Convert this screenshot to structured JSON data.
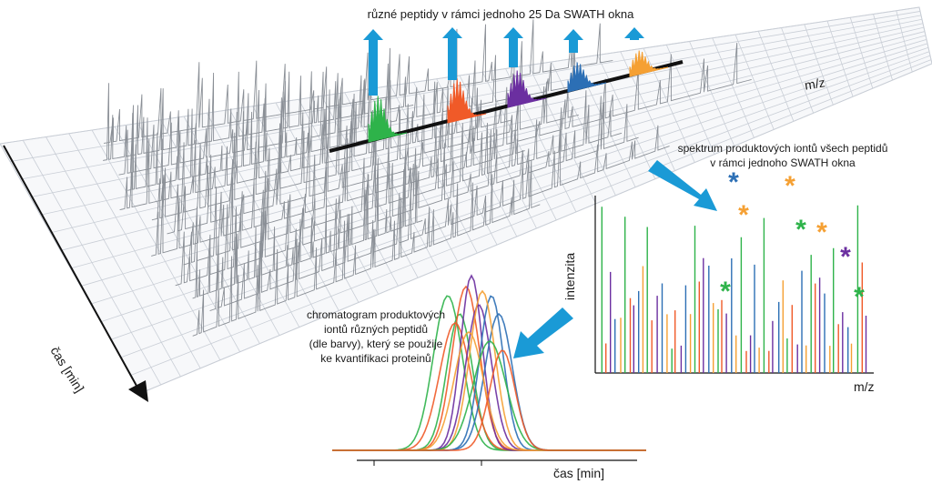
{
  "title_top": "různé peptidy v rámci jednoho 25 Da SWATH okna",
  "plane": {
    "x_axis_label": "m/z",
    "time_axis_label": "čas [min]"
  },
  "spectrum": {
    "caption_line1": "spektrum produktových iontů všech peptidů",
    "caption_line2": "v rámci jednoho SWATH okna",
    "ylabel": "intenzita",
    "xlabel": "m/z"
  },
  "chromatogram": {
    "caption_lines": [
      "chromatogram produktových",
      "iontů různých peptidů",
      "(dle barvy), který se použije",
      "ke kvantifikaci proteinů"
    ],
    "xlabel": "čas [min]"
  },
  "colors": {
    "green": "#2eb34a",
    "orange_red": "#f05a28",
    "purple": "#6b2fa0",
    "blue": "#2c6fb5",
    "orange": "#f5a033",
    "arrow": "#1a9ad6",
    "grid": "#c9ced6",
    "trace": "#8a8f96"
  },
  "marker_symbol": "*"
}
